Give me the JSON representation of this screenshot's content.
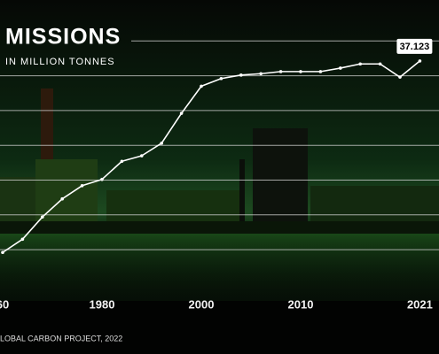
{
  "chart_data": {
    "type": "line",
    "title": "MISSIONS",
    "subtitle": "IN MILLION TONNES",
    "source": "LOBAL CARBON PROJECT, 2022",
    "categories": [
      "60",
      null,
      null,
      null,
      null,
      "1980",
      null,
      null,
      null,
      null,
      "2000",
      null,
      null,
      null,
      null,
      "2010",
      null,
      null,
      null,
      null,
      null,
      "2021"
    ],
    "series": [
      {
        "name": "Emissions",
        "color": "#ffffff",
        "values": [
          9.6,
          11.5,
          14.7,
          17.3,
          19.2,
          20.1,
          22.7,
          23.5,
          25.3,
          29.6,
          33.5,
          34.6,
          35.1,
          35.3,
          35.6,
          35.6,
          35.6,
          36.1,
          36.7,
          36.7,
          34.8,
          37.123
        ]
      }
    ],
    "ylim": [
      -5,
      45
    ],
    "yticks": [
      10,
      15,
      20,
      25,
      30,
      35,
      40
    ],
    "grid": true,
    "grid_color": "#d8d8d8"
  }
}
